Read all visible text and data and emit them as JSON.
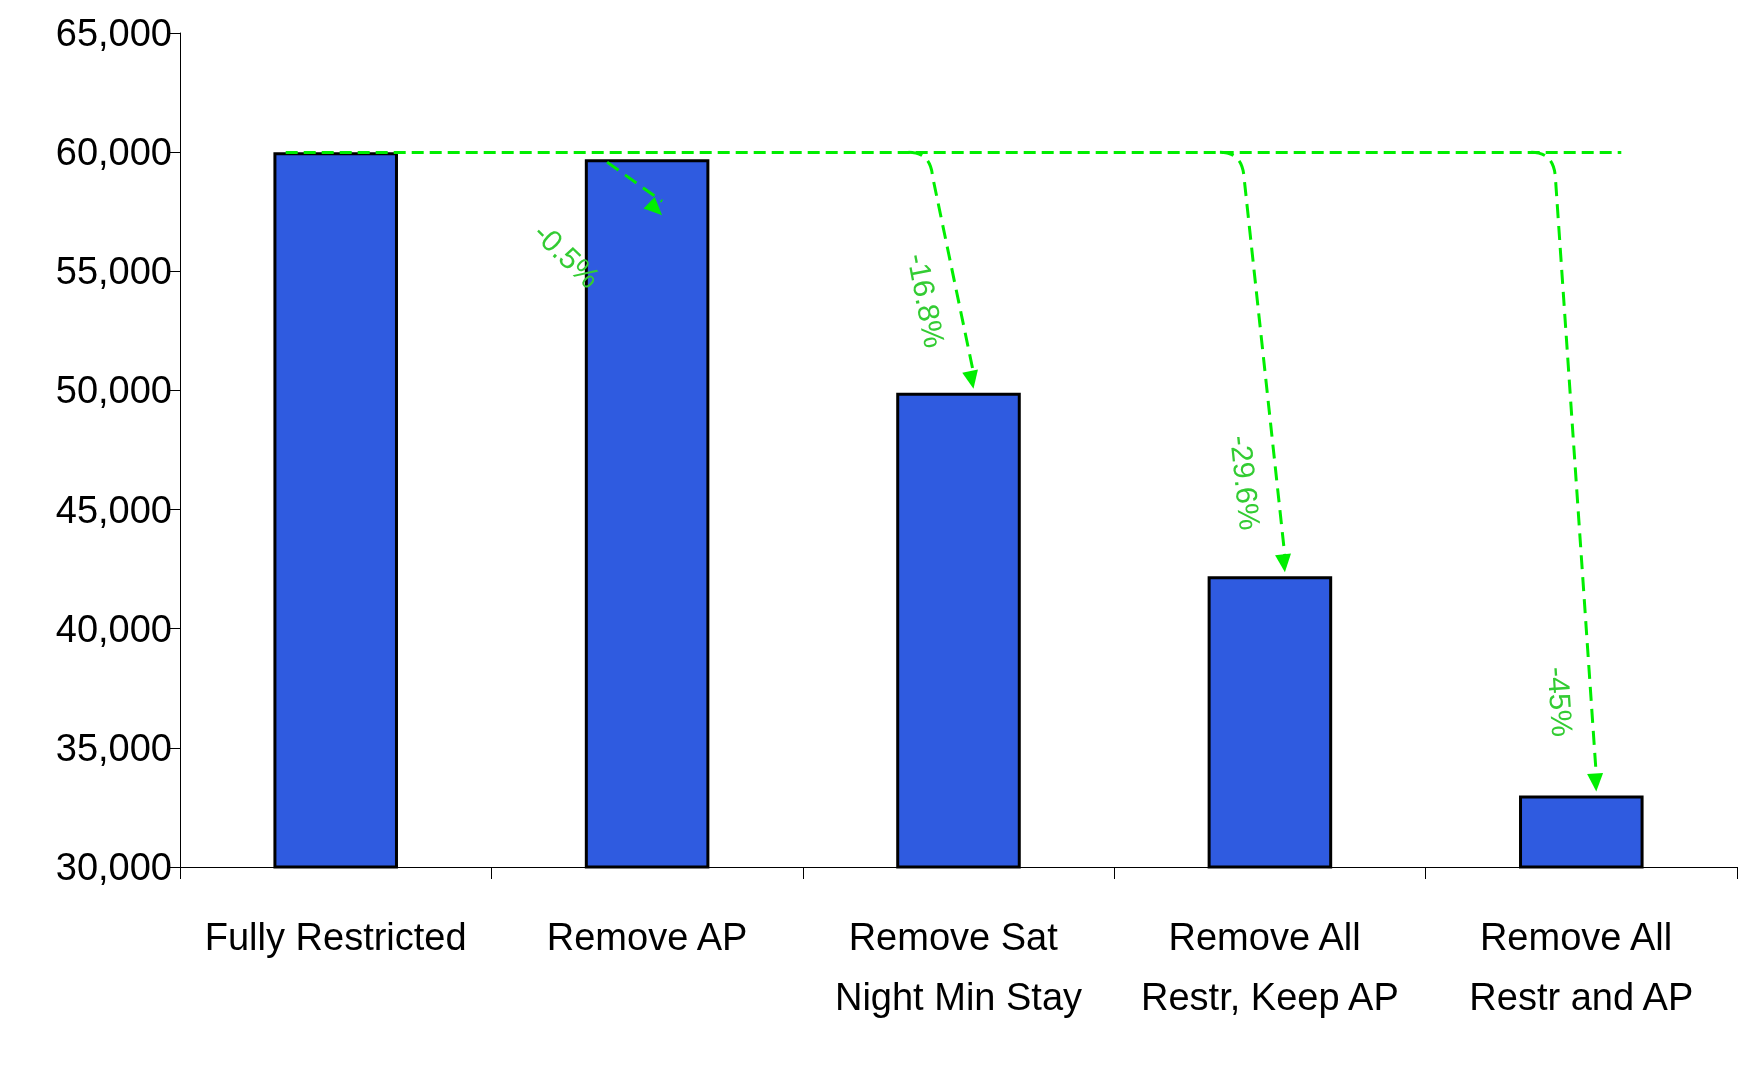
{
  "chart_data": {
    "type": "bar",
    "categories": [
      "Fully Restricted",
      "Remove AP",
      "Remove Sat Night Min Stay",
      "Remove All Restr, Keep AP",
      "Remove All Restr and AP"
    ],
    "values": [
      60000,
      59700,
      49900,
      42200,
      33000
    ],
    "color": "#2f5be0",
    "ylim": [
      30000,
      65000
    ],
    "yticks": [
      {
        "value": 30000,
        "label": "30,000"
      },
      {
        "value": 35000,
        "label": "35,000"
      },
      {
        "value": 40000,
        "label": "40,000"
      },
      {
        "value": 45000,
        "label": "45,000"
      },
      {
        "value": 50000,
        "label": "50,000"
      },
      {
        "value": 55000,
        "label": "55,000"
      },
      {
        "value": 60000,
        "label": "60,000"
      },
      {
        "value": 65000,
        "label": "65,000"
      }
    ],
    "ref_lines": [
      {
        "axis": "y",
        "value": 60000,
        "color": "#00ee00",
        "line_style": "dashed"
      }
    ],
    "annotations": [
      {
        "text": "-0.5%",
        "x": "Remove AP",
        "y": 59700
      },
      {
        "text": "-16.8%",
        "x": "Remove Sat Night Min Stay",
        "y": 49900
      },
      {
        "text": "-29.6%",
        "x": "Remove All Restr, Keep AP",
        "y": 42200
      },
      {
        "text": "-45%",
        "x": "Remove All Restr and AP",
        "y": 33000
      }
    ]
  }
}
